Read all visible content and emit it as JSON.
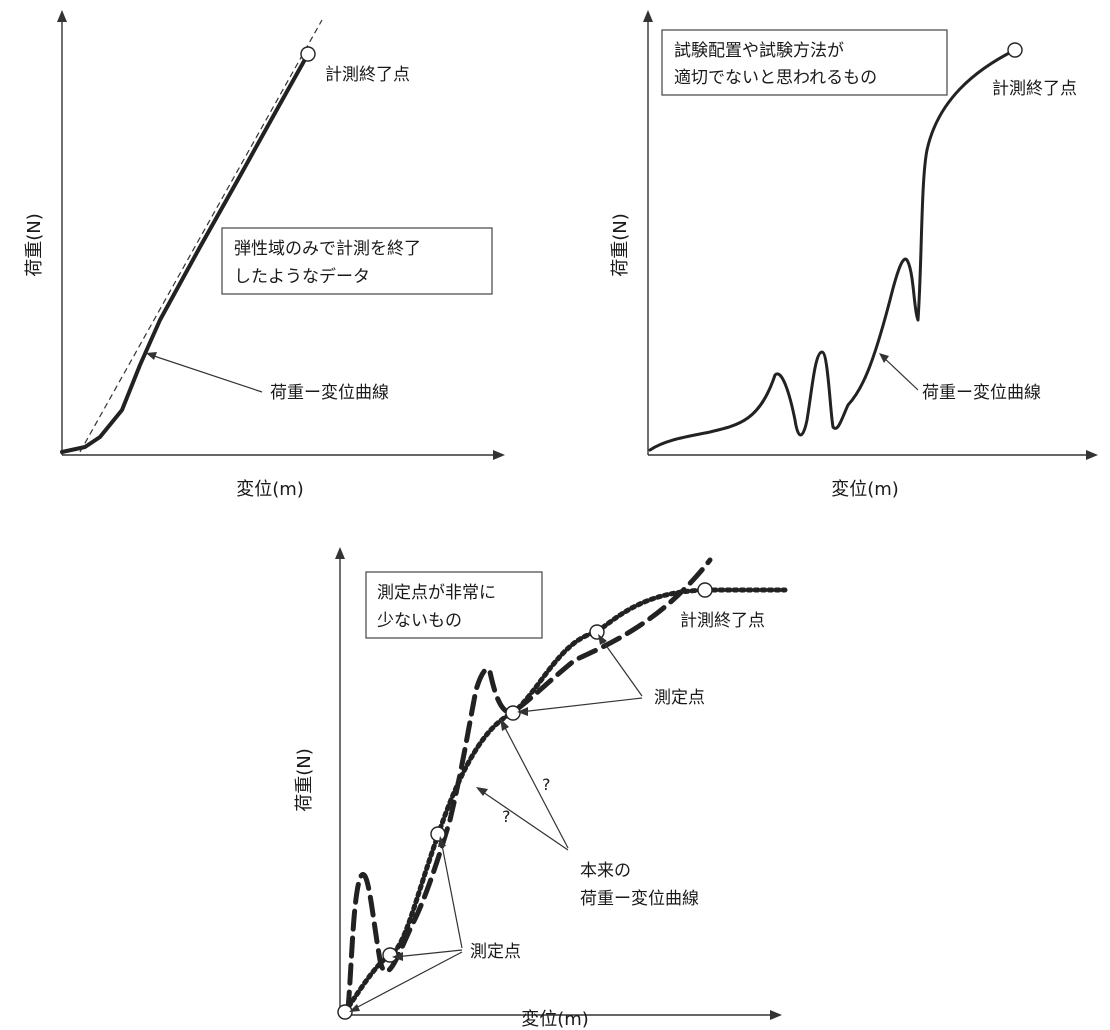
{
  "panel1": {
    "ylabel": "荷重(N)",
    "xlabel": "変位(m)",
    "end_label": "計測終了点",
    "box_lines": [
      "弾性域のみで計測を終了",
      "したようなデータ"
    ],
    "curve_label": "荷重ー変位曲線"
  },
  "panel2": {
    "ylabel": "荷重(N)",
    "xlabel": "変位(m)",
    "end_label": "計測終了点",
    "box_lines": [
      "試験配置や試験方法が",
      "適切でないと思われるもの"
    ],
    "curve_label": "荷重ー変位曲線"
  },
  "panel3": {
    "ylabel": "荷重(N)",
    "xlabel": "変位(m)",
    "end_label": "計測終了点",
    "box_lines": [
      "測定点が非常に",
      "少ないもの"
    ],
    "points_label_upper": "測定点",
    "points_label_lower": "測定点",
    "question_mark_1": "?",
    "question_mark_2": "?",
    "true_curve_lines": [
      "本来の",
      "荷重ー変位曲線"
    ]
  },
  "colors": {
    "ink": "#222222",
    "axis": "#333333",
    "paper": "#ffffff"
  }
}
